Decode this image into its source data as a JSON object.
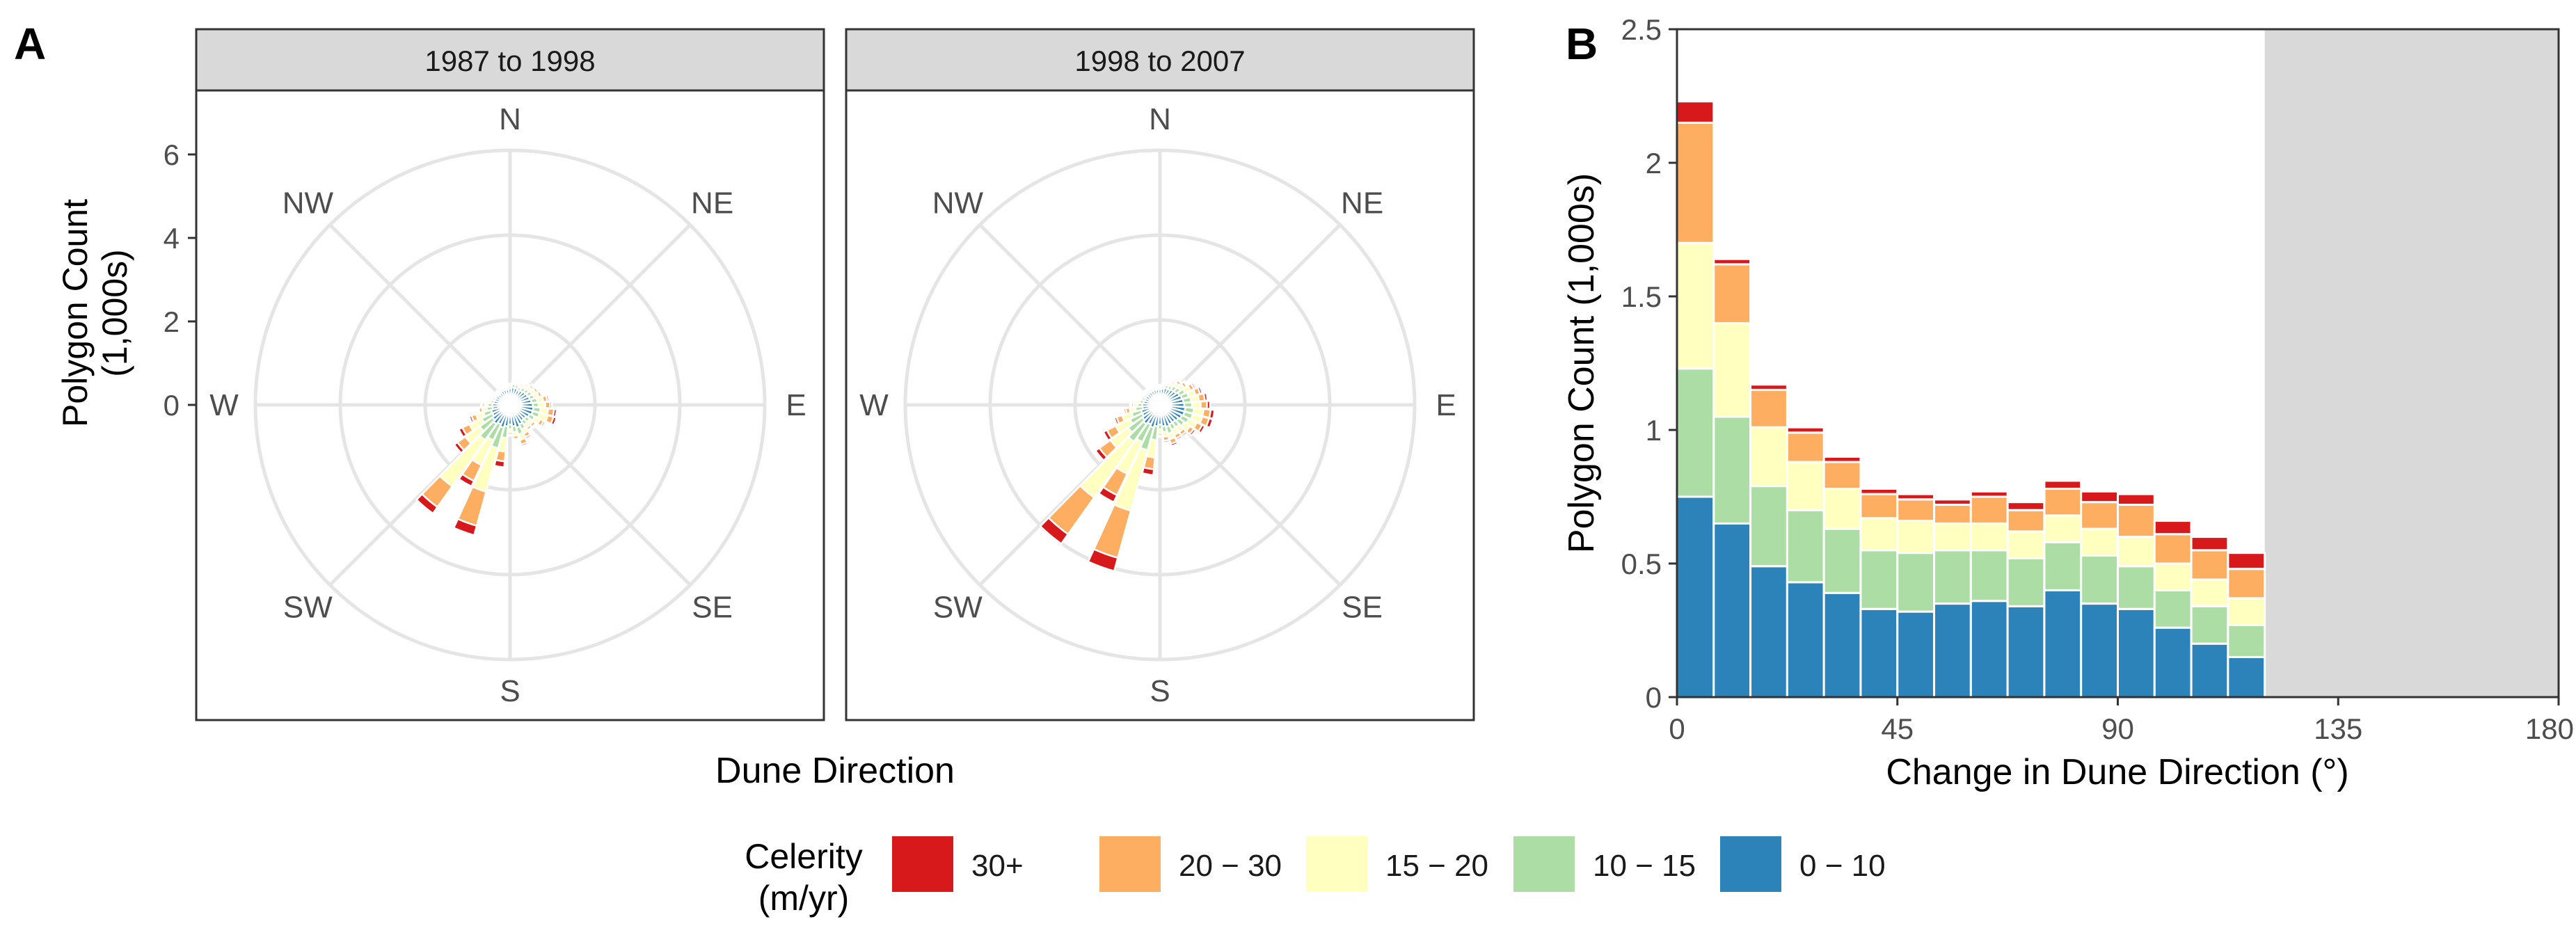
{
  "panel_labels": {
    "a": "A",
    "b": "B"
  },
  "colors": {
    "c30plus": "#d7191c",
    "c20_30": "#fdae61",
    "c15_20": "#ffffbf",
    "c10_15": "#abdda4",
    "c0_10": "#2b83ba",
    "strip_bg": "#d9d9d9",
    "grid": "#e5e5e5",
    "shade": "#d9d9d9"
  },
  "legend": {
    "title_line1": "Celerity",
    "title_line2": "(m/yr)",
    "items": [
      {
        "label": "30+",
        "color": "#d7191c"
      },
      {
        "label": "20 − 30",
        "color": "#fdae61"
      },
      {
        "label": "15 − 20",
        "color": "#ffffbf"
      },
      {
        "label": "10 − 15",
        "color": "#abdda4"
      },
      {
        "label": "0 − 10",
        "color": "#2b83ba"
      }
    ]
  },
  "chart_data": [
    {
      "id": "panel-a",
      "type": "polar-stacked-bar",
      "xlabel": "Dune Direction",
      "ylabel": "Polygon Count\n(1,000s)",
      "r_ticks": [
        0,
        2,
        4,
        6
      ],
      "r_max": 6.5,
      "directions": [
        "N",
        "NE",
        "E",
        "SE",
        "S",
        "SW",
        "W",
        "NW"
      ],
      "stack_order": [
        "0 − 10",
        "10 − 15",
        "15 − 20",
        "20 − 30",
        "30+"
      ],
      "facets": [
        {
          "label": "1987 to 1998",
          "bins": [
            {
              "bearing": 0,
              "values": [
                0.42,
                0.06,
                0.03,
                0.02,
                0.01
              ]
            },
            {
              "bearing": 10,
              "values": [
                0.45,
                0.08,
                0.05,
                0.03,
                0.01
              ]
            },
            {
              "bearing": 20,
              "values": [
                0.45,
                0.08,
                0.05,
                0.04,
                0.01
              ]
            },
            {
              "bearing": 30,
              "values": [
                0.42,
                0.08,
                0.06,
                0.05,
                0.02
              ]
            },
            {
              "bearing": 40,
              "values": [
                0.45,
                0.1,
                0.08,
                0.05,
                0.02
              ]
            },
            {
              "bearing": 50,
              "values": [
                0.48,
                0.1,
                0.1,
                0.06,
                0.03
              ]
            },
            {
              "bearing": 60,
              "values": [
                0.5,
                0.12,
                0.1,
                0.07,
                0.03
              ]
            },
            {
              "bearing": 70,
              "values": [
                0.52,
                0.12,
                0.12,
                0.08,
                0.04
              ]
            },
            {
              "bearing": 80,
              "values": [
                0.55,
                0.15,
                0.15,
                0.1,
                0.05
              ]
            },
            {
              "bearing": 90,
              "values": [
                0.58,
                0.15,
                0.17,
                0.12,
                0.05
              ]
            },
            {
              "bearing": 100,
              "values": [
                0.6,
                0.18,
                0.2,
                0.15,
                0.07
              ]
            },
            {
              "bearing": 110,
              "values": [
                0.6,
                0.18,
                0.22,
                0.15,
                0.08
              ]
            },
            {
              "bearing": 120,
              "values": [
                0.55,
                0.15,
                0.15,
                0.1,
                0.05
              ]
            },
            {
              "bearing": 130,
              "values": [
                0.5,
                0.12,
                0.1,
                0.08,
                0.04
              ]
            },
            {
              "bearing": 140,
              "values": [
                0.5,
                0.12,
                0.1,
                0.07,
                0.03
              ]
            },
            {
              "bearing": 150,
              "values": [
                0.55,
                0.14,
                0.12,
                0.1,
                0.05
              ]
            },
            {
              "bearing": 160,
              "values": [
                0.6,
                0.18,
                0.15,
                0.12,
                0.05
              ]
            },
            {
              "bearing": 170,
              "values": [
                0.55,
                0.15,
                0.1,
                0.08,
                0.04
              ]
            },
            {
              "bearing": 180,
              "values": [
                0.5,
                0.12,
                0.08,
                0.06,
                0.03
              ]
            },
            {
              "bearing": 190,
              "values": [
                0.55,
                0.3,
                0.35,
                0.25,
                0.15
              ]
            },
            {
              "bearing": 200,
              "values": [
                0.6,
                0.55,
                1.15,
                0.9,
                0.25
              ]
            },
            {
              "bearing": 210,
              "values": [
                0.55,
                0.45,
                0.7,
                0.45,
                0.15
              ]
            },
            {
              "bearing": 220,
              "values": [
                0.6,
                0.5,
                1.45,
                0.65,
                0.2
              ]
            },
            {
              "bearing": 230,
              "values": [
                0.55,
                0.4,
                0.45,
                0.25,
                0.1
              ]
            },
            {
              "bearing": 240,
              "values": [
                0.5,
                0.3,
                0.35,
                0.2,
                0.1
              ]
            },
            {
              "bearing": 250,
              "values": [
                0.5,
                0.2,
                0.2,
                0.12,
                0.06
              ]
            },
            {
              "bearing": 260,
              "values": [
                0.45,
                0.15,
                0.12,
                0.08,
                0.04
              ]
            },
            {
              "bearing": 270,
              "values": [
                0.45,
                0.12,
                0.08,
                0.06,
                0.03
              ]
            },
            {
              "bearing": 280,
              "values": [
                0.42,
                0.08,
                0.05,
                0.04,
                0.02
              ]
            },
            {
              "bearing": 290,
              "values": [
                0.4,
                0.06,
                0.04,
                0.03,
                0.01
              ]
            },
            {
              "bearing": 300,
              "values": [
                0.4,
                0.05,
                0.03,
                0.02,
                0.01
              ]
            },
            {
              "bearing": 310,
              "values": [
                0.38,
                0.05,
                0.03,
                0.02,
                0.01
              ]
            },
            {
              "bearing": 320,
              "values": [
                0.38,
                0.05,
                0.03,
                0.02,
                0.01
              ]
            },
            {
              "bearing": 330,
              "values": [
                0.4,
                0.05,
                0.03,
                0.02,
                0.01
              ]
            },
            {
              "bearing": 340,
              "values": [
                0.4,
                0.05,
                0.03,
                0.02,
                0.01
              ]
            },
            {
              "bearing": 350,
              "values": [
                0.4,
                0.05,
                0.03,
                0.02,
                0.01
              ]
            }
          ]
        },
        {
          "label": "1998 to 2007",
          "bins": [
            {
              "bearing": 0,
              "values": [
                0.4,
                0.05,
                0.03,
                0.02,
                0.01
              ]
            },
            {
              "bearing": 10,
              "values": [
                0.42,
                0.06,
                0.04,
                0.03,
                0.01
              ]
            },
            {
              "bearing": 20,
              "values": [
                0.45,
                0.08,
                0.06,
                0.04,
                0.02
              ]
            },
            {
              "bearing": 30,
              "values": [
                0.45,
                0.1,
                0.08,
                0.05,
                0.02
              ]
            },
            {
              "bearing": 40,
              "values": [
                0.48,
                0.12,
                0.1,
                0.07,
                0.03
              ]
            },
            {
              "bearing": 50,
              "values": [
                0.5,
                0.14,
                0.12,
                0.08,
                0.04
              ]
            },
            {
              "bearing": 60,
              "values": [
                0.55,
                0.16,
                0.15,
                0.1,
                0.05
              ]
            },
            {
              "bearing": 70,
              "values": [
                0.58,
                0.18,
                0.18,
                0.12,
                0.06
              ]
            },
            {
              "bearing": 80,
              "values": [
                0.6,
                0.2,
                0.2,
                0.15,
                0.07
              ]
            },
            {
              "bearing": 90,
              "values": [
                0.62,
                0.2,
                0.22,
                0.16,
                0.08
              ]
            },
            {
              "bearing": 100,
              "values": [
                0.65,
                0.22,
                0.25,
                0.18,
                0.1
              ]
            },
            {
              "bearing": 110,
              "values": [
                0.65,
                0.22,
                0.25,
                0.18,
                0.1
              ]
            },
            {
              "bearing": 120,
              "values": [
                0.62,
                0.2,
                0.22,
                0.15,
                0.08
              ]
            },
            {
              "bearing": 130,
              "values": [
                0.58,
                0.18,
                0.18,
                0.12,
                0.06
              ]
            },
            {
              "bearing": 140,
              "values": [
                0.55,
                0.15,
                0.15,
                0.1,
                0.05
              ]
            },
            {
              "bearing": 150,
              "values": [
                0.55,
                0.15,
                0.15,
                0.1,
                0.05
              ]
            },
            {
              "bearing": 160,
              "values": [
                0.58,
                0.18,
                0.15,
                0.12,
                0.06
              ]
            },
            {
              "bearing": 170,
              "values": [
                0.55,
                0.15,
                0.12,
                0.1,
                0.05
              ]
            },
            {
              "bearing": 180,
              "values": [
                0.5,
                0.12,
                0.1,
                0.06,
                0.04
              ]
            },
            {
              "bearing": 190,
              "values": [
                0.55,
                0.35,
                0.45,
                0.3,
                0.15
              ]
            },
            {
              "bearing": 200,
              "values": [
                0.6,
                0.6,
                1.6,
                1.25,
                0.35
              ]
            },
            {
              "bearing": 210,
              "values": [
                0.55,
                0.5,
                0.9,
                0.6,
                0.2
              ]
            },
            {
              "bearing": 220,
              "values": [
                0.6,
                0.55,
                1.75,
                1.15,
                0.3
              ]
            },
            {
              "bearing": 230,
              "values": [
                0.55,
                0.45,
                0.55,
                0.35,
                0.12
              ]
            },
            {
              "bearing": 240,
              "values": [
                0.5,
                0.35,
                0.4,
                0.25,
                0.1
              ]
            },
            {
              "bearing": 250,
              "values": [
                0.5,
                0.25,
                0.25,
                0.15,
                0.06
              ]
            },
            {
              "bearing": 260,
              "values": [
                0.45,
                0.18,
                0.15,
                0.1,
                0.05
              ]
            },
            {
              "bearing": 270,
              "values": [
                0.45,
                0.12,
                0.1,
                0.06,
                0.03
              ]
            },
            {
              "bearing": 280,
              "values": [
                0.42,
                0.1,
                0.06,
                0.04,
                0.02
              ]
            },
            {
              "bearing": 290,
              "values": [
                0.4,
                0.08,
                0.05,
                0.03,
                0.02
              ]
            },
            {
              "bearing": 300,
              "values": [
                0.4,
                0.06,
                0.04,
                0.03,
                0.01
              ]
            },
            {
              "bearing": 310,
              "values": [
                0.4,
                0.06,
                0.04,
                0.02,
                0.01
              ]
            },
            {
              "bearing": 320,
              "values": [
                0.4,
                0.05,
                0.04,
                0.02,
                0.01
              ]
            },
            {
              "bearing": 330,
              "values": [
                0.4,
                0.05,
                0.03,
                0.02,
                0.01
              ]
            },
            {
              "bearing": 340,
              "values": [
                0.4,
                0.05,
                0.03,
                0.02,
                0.01
              ]
            },
            {
              "bearing": 350,
              "values": [
                0.4,
                0.05,
                0.03,
                0.02,
                0.01
              ]
            }
          ]
        }
      ]
    },
    {
      "id": "panel-b",
      "type": "bar",
      "stacked": true,
      "xlabel": "Change in Dune Direction (°)",
      "ylabel": "Polygon Count (1,000s)",
      "xlim": [
        0,
        180
      ],
      "ylim": [
        0,
        2.5
      ],
      "x_ticks": [
        0,
        45,
        90,
        135,
        180
      ],
      "y_ticks": [
        0,
        0.5,
        1,
        1.5,
        2,
        2.5
      ],
      "y_tick_labels": [
        "0",
        "0.5",
        "1",
        "1.5",
        "2",
        "2.5"
      ],
      "bin_width": 7.5,
      "shaded_region": [
        120,
        180
      ],
      "x": [
        0,
        7.5,
        15,
        22.5,
        30,
        37.5,
        45,
        52.5,
        60,
        67.5,
        75,
        82.5,
        90,
        97.5,
        105,
        112.5
      ],
      "series": [
        {
          "name": "0 − 10",
          "values": [
            0.75,
            0.65,
            0.49,
            0.43,
            0.39,
            0.33,
            0.32,
            0.35,
            0.36,
            0.34,
            0.4,
            0.35,
            0.33,
            0.26,
            0.2,
            0.15
          ]
        },
        {
          "name": "10 − 15",
          "values": [
            0.48,
            0.4,
            0.3,
            0.27,
            0.24,
            0.22,
            0.22,
            0.2,
            0.19,
            0.18,
            0.18,
            0.18,
            0.16,
            0.14,
            0.14,
            0.12
          ]
        },
        {
          "name": "15 − 20",
          "values": [
            0.47,
            0.35,
            0.22,
            0.18,
            0.15,
            0.12,
            0.12,
            0.1,
            0.1,
            0.1,
            0.1,
            0.1,
            0.11,
            0.1,
            0.1,
            0.1
          ]
        },
        {
          "name": "20 − 30",
          "values": [
            0.45,
            0.22,
            0.14,
            0.11,
            0.1,
            0.09,
            0.08,
            0.07,
            0.1,
            0.08,
            0.1,
            0.1,
            0.12,
            0.11,
            0.11,
            0.11
          ]
        },
        {
          "name": "30+",
          "values": [
            0.08,
            0.02,
            0.02,
            0.02,
            0.02,
            0.02,
            0.02,
            0.02,
            0.02,
            0.03,
            0.03,
            0.04,
            0.04,
            0.05,
            0.05,
            0.06
          ]
        }
      ]
    }
  ]
}
